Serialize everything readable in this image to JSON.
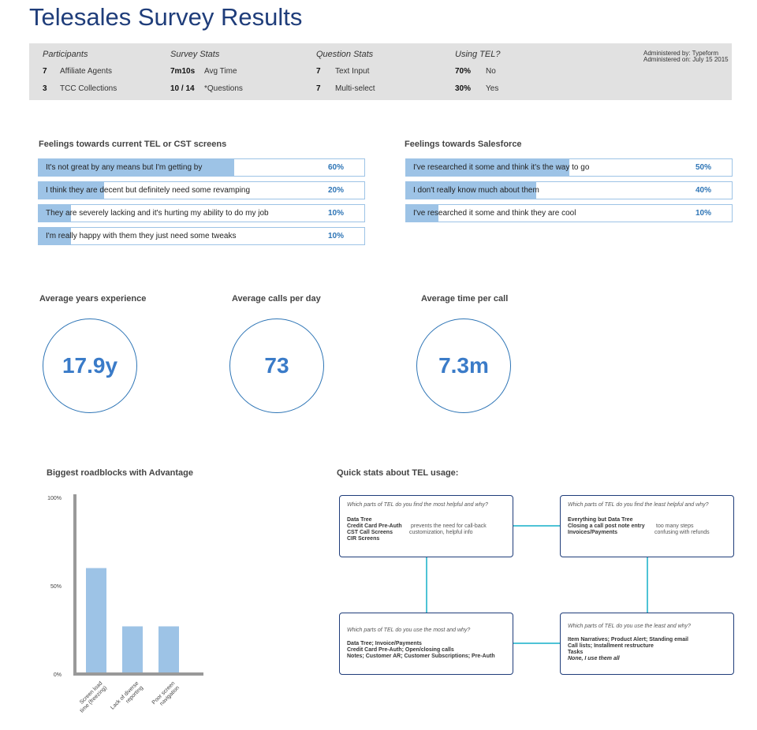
{
  "page": {
    "title": "Telesales Survey Results"
  },
  "summary": {
    "participants": {
      "header": "Participants",
      "rows": [
        {
          "num": "7",
          "label": "Affiliate Agents"
        },
        {
          "num": "3",
          "label": "TCC Collections"
        }
      ]
    },
    "survey_stats": {
      "header": "Survey Stats",
      "rows": [
        {
          "num": "7m10s",
          "label": "Avg Time"
        },
        {
          "num": "10 / 14",
          "label": "*Questions"
        }
      ]
    },
    "question_stats": {
      "header": "Question Stats",
      "rows": [
        {
          "num": "7",
          "label": "Text Input"
        },
        {
          "num": "7",
          "label": "Multi-select"
        }
      ]
    },
    "using_tel": {
      "header": "Using TEL?",
      "rows": [
        {
          "num": "70%",
          "label": "No"
        },
        {
          "num": "30%",
          "label": "Yes"
        }
      ]
    },
    "administered_by": "Administered by: Typeform",
    "administered_on": "Administered on: July 15 2015"
  },
  "feelings_tel": {
    "title": "Feelings towards current TEL or CST screens",
    "items": [
      {
        "text": "It's not great by any means but I'm getting by",
        "pct_label": "60%",
        "value": 60
      },
      {
        "text": "I think they are decent but definitely need some revamping",
        "pct_label": "20%",
        "value": 20
      },
      {
        "text": "They are severely lacking and it's hurting my ability to do my job",
        "pct_label": "10%",
        "value": 10
      },
      {
        "text": "I'm really happy with them they just need some tweaks",
        "pct_label": "10%",
        "value": 10
      }
    ]
  },
  "feelings_salesforce": {
    "title": "Feelings towards Salesforce",
    "items": [
      {
        "text": "I've researched it some and think it's the way to go",
        "pct_label": "50%",
        "value": 50
      },
      {
        "text": "I don't really know much about them",
        "pct_label": "40%",
        "value": 40
      },
      {
        "text": "I've researched it some and think they are cool",
        "pct_label": "10%",
        "value": 10
      }
    ]
  },
  "averages": [
    {
      "title": "Average years experience",
      "value": "17.9y"
    },
    {
      "title": "Average calls per day",
      "value": "73"
    },
    {
      "title": "Average time per call",
      "value": "7.3m"
    }
  ],
  "roadblocks": {
    "title": "Biggest roadblocks with Advantage"
  },
  "chart_data": {
    "type": "bar",
    "categories": [
      "Screen load time (freezing)",
      "Lack of diverse reporting",
      "Poor screen navigation"
    ],
    "category_lines": [
      [
        "Screen load",
        "time (freezing)"
      ],
      [
        "Lack of diverse",
        "reporting"
      ],
      [
        "Poor screen",
        "navigation"
      ]
    ],
    "values": [
      60,
      27,
      27
    ],
    "ylim": [
      0,
      100
    ],
    "yticks": [
      {
        "value": 100,
        "label": "100%"
      },
      {
        "value": 50,
        "label": "50%"
      },
      {
        "value": 0,
        "label": "0%"
      }
    ],
    "bar_color": "#9dc3e6",
    "axis_color": "#999999"
  },
  "quick_stats": {
    "title": "Quick stats about TEL usage:",
    "most_helpful": {
      "question": "Which parts of TEL do you find the most helpful and why?",
      "lines": [
        "Data Tree",
        "Credit Card Pre-Auth",
        "CST Call Screens",
        "CIR Screens"
      ],
      "notes": [
        "prevents the need for call-back",
        "customization, helpful info"
      ]
    },
    "least_helpful": {
      "question": "Which parts of TEL do you find the least helpful and why?",
      "lines": [
        "Everything but Data Tree",
        "Closing a call post note entry",
        "Invoices/Payments"
      ],
      "notes": [
        "too many steps",
        "confusing with refunds"
      ]
    },
    "use_most": {
      "question": "Which parts of TEL do you use the most and why?",
      "lines": [
        "Data Tree; Invoice/Payments",
        "Credit Card Pre-Auth; Open/closing calls",
        "Notes; Customer AR; Customer Subscriptions; Pre-Auth"
      ]
    },
    "use_least": {
      "question": "Which parts of TEL do you use the least and why?",
      "lines": [
        "Item Narratives; Product Alert; Standing email",
        "Call lists; Installment restructure",
        "Tasks",
        "None, I use them all"
      ]
    }
  }
}
